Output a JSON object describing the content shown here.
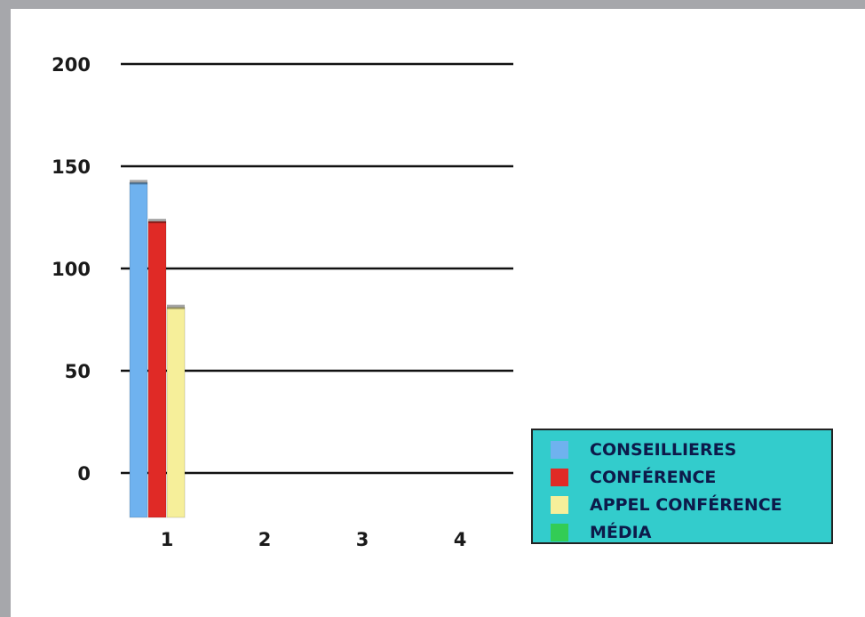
{
  "chart_data": {
    "type": "bar",
    "categories": [
      "1",
      "2",
      "3",
      "4"
    ],
    "series": [
      {
        "name": "CONSEILLIERES",
        "values": [
          142,
          null,
          null,
          null
        ],
        "color": "#6fb2ef"
      },
      {
        "name": "CONFÉRENCE",
        "values": [
          123,
          null,
          null,
          null
        ],
        "color": "#e02a26"
      },
      {
        "name": "APPEL CONFÉRENCE",
        "values": [
          81,
          null,
          null,
          null
        ],
        "color": "#f6ef9a"
      },
      {
        "name": "MÉDIA",
        "values": [
          null,
          null,
          null,
          null
        ],
        "color": "#33cc55"
      }
    ],
    "yticks": [
      "0",
      "50",
      "100",
      "150",
      "200"
    ],
    "ylim": [
      0,
      200
    ],
    "grid": true,
    "legend_position": "bottom-right",
    "legend_background": "#33cccc",
    "title": "",
    "xlabel": "",
    "ylabel": ""
  }
}
